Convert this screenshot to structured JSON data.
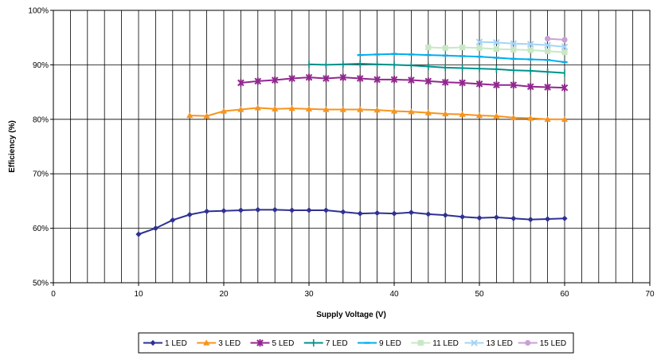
{
  "chart_data": {
    "type": "line",
    "title": "",
    "xlabel": "Supply Voltage (V)",
    "ylabel": "Efficiency (%)",
    "xlim": [
      0,
      70
    ],
    "ylim": [
      50,
      100
    ],
    "x_ticks": [
      0,
      10,
      20,
      30,
      40,
      50,
      60,
      70
    ],
    "y_ticks": [
      50,
      60,
      70,
      80,
      90,
      100
    ],
    "y_tick_labels": [
      "50%",
      "60%",
      "70%",
      "80%",
      "90%",
      "100%"
    ],
    "x_gridline_step": 2,
    "grid": true,
    "legend_position": "bottom",
    "series": [
      {
        "name": "1 LED",
        "color": "#2e3192",
        "marker": "diamond",
        "x": [
          10,
          12,
          14,
          16,
          18,
          20,
          22,
          24,
          26,
          28,
          30,
          32,
          34,
          36,
          38,
          40,
          42,
          44,
          46,
          48,
          50,
          52,
          54,
          56,
          58,
          60
        ],
        "values": [
          58.9,
          60.0,
          61.5,
          62.5,
          63.1,
          63.2,
          63.3,
          63.4,
          63.4,
          63.3,
          63.3,
          63.3,
          63.0,
          62.7,
          62.8,
          62.7,
          62.9,
          62.6,
          62.4,
          62.1,
          61.9,
          62.0,
          61.8,
          61.6,
          61.7,
          61.8
        ]
      },
      {
        "name": "3 LED",
        "color": "#f7941d",
        "marker": "triangle",
        "x": [
          16,
          18,
          20,
          22,
          24,
          26,
          28,
          30,
          32,
          34,
          36,
          38,
          40,
          42,
          44,
          46,
          48,
          50,
          52,
          54,
          56,
          58,
          60
        ],
        "values": [
          80.7,
          80.6,
          81.5,
          81.8,
          82.1,
          81.9,
          82.0,
          81.9,
          81.8,
          81.8,
          81.8,
          81.7,
          81.5,
          81.4,
          81.2,
          81.0,
          80.9,
          80.7,
          80.6,
          80.3,
          80.2,
          80.0,
          80.0
        ]
      },
      {
        "name": "5 LED",
        "color": "#92278f",
        "marker": "star",
        "x": [
          22,
          24,
          26,
          28,
          30,
          32,
          34,
          36,
          38,
          40,
          42,
          44,
          46,
          48,
          50,
          52,
          54,
          56,
          58,
          60
        ],
        "values": [
          86.7,
          87.0,
          87.2,
          87.5,
          87.7,
          87.5,
          87.7,
          87.5,
          87.3,
          87.3,
          87.2,
          87.0,
          86.8,
          86.7,
          86.5,
          86.3,
          86.3,
          86.0,
          85.9,
          85.8
        ]
      },
      {
        "name": "7 LED",
        "color": "#00918a",
        "marker": "plus",
        "x": [
          30,
          32,
          34,
          36,
          38,
          40,
          42,
          44,
          46,
          48,
          50,
          52,
          54,
          56,
          58,
          60
        ],
        "values": [
          90.1,
          90.0,
          90.1,
          90.2,
          90.1,
          90.0,
          89.9,
          89.7,
          89.5,
          89.4,
          89.3,
          89.2,
          89.0,
          88.9,
          88.7,
          88.5
        ]
      },
      {
        "name": "9 LED",
        "color": "#00aeef",
        "marker": "dash",
        "x": [
          36,
          38,
          40,
          42,
          44,
          46,
          48,
          50,
          52,
          54,
          56,
          58,
          60
        ],
        "values": [
          91.8,
          91.9,
          92.0,
          91.9,
          91.8,
          91.7,
          91.6,
          91.5,
          91.3,
          91.1,
          91.0,
          90.9,
          90.5
        ]
      },
      {
        "name": "11 LED",
        "color": "#c7e8c4",
        "marker": "square",
        "x": [
          44,
          46,
          48,
          50,
          52,
          54,
          56,
          58,
          60
        ],
        "values": [
          93.2,
          93.1,
          93.2,
          93.1,
          92.9,
          92.8,
          92.7,
          92.5,
          92.3
        ]
      },
      {
        "name": "13 LED",
        "color": "#a5d4f5",
        "marker": "x",
        "x": [
          50,
          52,
          54,
          56,
          58,
          60
        ],
        "values": [
          94.2,
          94.1,
          93.9,
          93.8,
          93.6,
          93.3
        ]
      },
      {
        "name": "15 LED",
        "color": "#c9a0d6",
        "marker": "circle",
        "x": [
          58,
          60
        ],
        "values": [
          94.8,
          94.6
        ]
      }
    ]
  }
}
